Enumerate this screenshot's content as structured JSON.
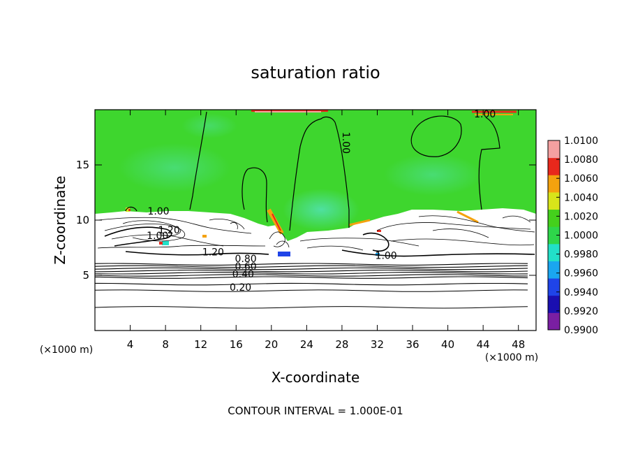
{
  "chart_data": {
    "type": "heatmap",
    "title": "saturation ratio",
    "xlabel": "X-coordinate",
    "ylabel": "Z-coordinate",
    "x_unit_left": "(×1000 m)",
    "x_unit_right": "(×1000 m)",
    "footer": "CONTOUR INTERVAL = 1.000E-01",
    "xlim": [
      0,
      50
    ],
    "ylim": [
      0,
      20
    ],
    "x_ticks": [
      4,
      8,
      12,
      16,
      20,
      24,
      28,
      32,
      36,
      40,
      44,
      48
    ],
    "y_ticks": [
      5,
      10,
      15
    ],
    "colorbar": {
      "min": 0.99,
      "max": 1.01,
      "labels": [
        "1.0100",
        "1.0080",
        "1.0060",
        "1.0040",
        "1.0020",
        "1.0000",
        "0.9980",
        "0.9960",
        "0.9940",
        "0.9920",
        "0.9900"
      ],
      "colors": [
        "#7a1fa2",
        "#1a0fb0",
        "#1f44e8",
        "#1aa6f0",
        "#22e0c8",
        "#2ed64a",
        "#44d01c",
        "#d8e41a",
        "#f4a20e",
        "#e8281c",
        "#f4a0a0"
      ]
    },
    "contour_labels": [
      {
        "text": "1.00",
        "x": 44.2,
        "y": 19.3
      },
      {
        "text": "1.00",
        "x": 28.1,
        "y": 17.0
      },
      {
        "text": "1.00",
        "x": 7.2,
        "y": 10.5
      },
      {
        "text": "1.20",
        "x": 8.4,
        "y": 8.8
      },
      {
        "text": "1.00",
        "x": 7.1,
        "y": 8.3
      },
      {
        "text": "1.20",
        "x": 13.4,
        "y": 6.8
      },
      {
        "text": "1.00",
        "x": 33.0,
        "y": 6.5
      },
      {
        "text": "0.80",
        "x": 17.1,
        "y": 6.2
      },
      {
        "text": "0.60",
        "x": 17.1,
        "y": 5.5
      },
      {
        "text": "0.40",
        "x": 16.8,
        "y": 4.8
      },
      {
        "text": "0.20",
        "x": 16.5,
        "y": 3.6
      }
    ],
    "stable_layer_contours_z": [
      2.1,
      3.6,
      4.2,
      4.8,
      5.0,
      5.2,
      5.4,
      5.6,
      5.8,
      6.0
    ]
  }
}
